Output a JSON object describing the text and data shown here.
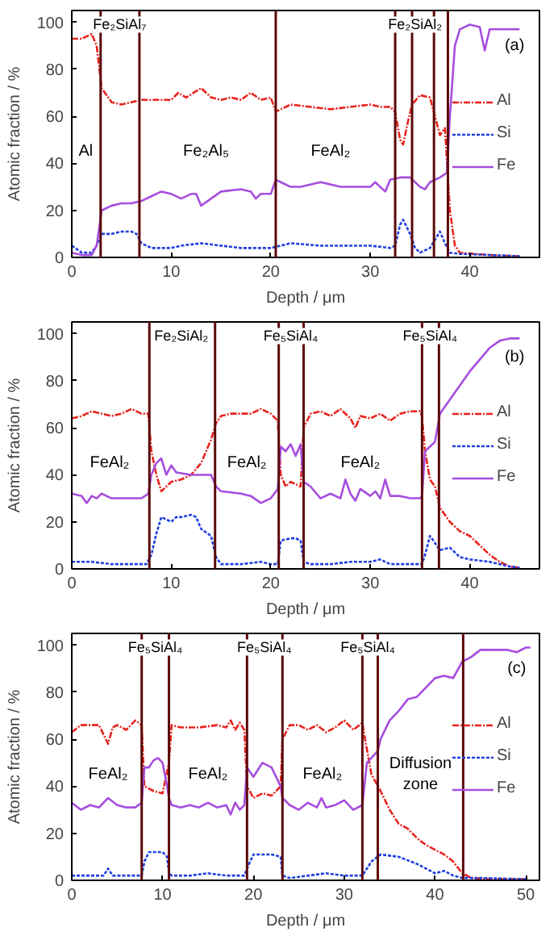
{
  "chart_data": [
    {
      "type": "line",
      "xlabel": "Depth / μm",
      "ylabel": "Atomic fraction / %",
      "xlim": [
        0,
        47
      ],
      "ylim": [
        0,
        105
      ],
      "xticks": [
        0,
        10,
        20,
        30,
        40
      ],
      "yticks": [
        0,
        20,
        40,
        60,
        80,
        100
      ],
      "grid": false,
      "legend": "right",
      "marker": "none",
      "series": [
        {
          "name": "Al",
          "color": "#e8231e",
          "line_style": "dashdot",
          "x": [
            0,
            1,
            2,
            2.5,
            3,
            4,
            5,
            6,
            7,
            9,
            10,
            10.7,
            11.5,
            13,
            14,
            15,
            16,
            17,
            18,
            19,
            20,
            20.5,
            21,
            22,
            24,
            26,
            28,
            30,
            31,
            32,
            32.5,
            33,
            33.3,
            33.8,
            34.2,
            35,
            36,
            36.5,
            37,
            37.5,
            38,
            38.5,
            39,
            42,
            45
          ],
          "values": [
            93,
            93,
            95,
            90,
            72,
            66,
            65,
            66,
            67,
            67,
            67,
            70,
            68,
            72,
            68,
            67,
            68,
            67,
            70,
            67,
            68,
            62,
            63,
            65,
            64,
            63,
            64,
            65,
            64,
            64,
            62,
            50,
            48,
            58,
            65,
            69,
            68,
            60,
            52,
            55,
            20,
            5,
            2,
            1,
            0.5
          ]
        },
        {
          "name": "Si",
          "color": "#1f3fe0",
          "line_style": "dotted",
          "x": [
            0,
            1,
            2,
            2.5,
            3,
            4,
            5,
            6,
            6.5,
            7,
            8,
            10,
            11,
            13,
            15,
            17,
            19,
            20,
            21,
            22,
            25,
            28,
            30,
            32,
            32.5,
            33,
            33.3,
            34,
            34.5,
            35,
            36,
            37,
            37.5,
            38,
            39,
            42,
            45
          ],
          "values": [
            5,
            2,
            2,
            5,
            10,
            10,
            11,
            11,
            10,
            6,
            4,
            4,
            5,
            6,
            5,
            4,
            4,
            4,
            5,
            6,
            5,
            5,
            5,
            4,
            5,
            14,
            16,
            10,
            4,
            2,
            4,
            11,
            6,
            2,
            1.5,
            1,
            0.5
          ]
        },
        {
          "name": "Fe",
          "color": "#a64dde",
          "line_style": "solid",
          "x": [
            0,
            1,
            2,
            2.5,
            3,
            4,
            5,
            6,
            7,
            8,
            9,
            10,
            11,
            12,
            12.5,
            13,
            14,
            15,
            17,
            18,
            18.5,
            19,
            20,
            20.5,
            21,
            22,
            23,
            25,
            27,
            28,
            30,
            30.5,
            31,
            31.5,
            32,
            33,
            34,
            35,
            35.5,
            36,
            37,
            37.7,
            38,
            38.5,
            39,
            40,
            41,
            41.5,
            42,
            43,
            45
          ],
          "values": [
            2,
            1,
            1,
            5,
            20,
            22,
            23,
            23,
            24,
            26,
            28,
            27,
            25,
            27,
            27,
            22,
            25,
            28,
            29,
            28,
            25,
            27,
            27,
            33,
            32,
            30,
            30,
            32,
            30,
            30,
            30,
            32,
            30,
            28,
            33,
            34,
            34,
            30,
            29,
            32,
            34,
            36,
            60,
            90,
            97,
            99,
            98,
            88,
            97,
            97,
            97
          ]
        }
      ],
      "ref_lines": [
        {
          "axis": "x",
          "value": 2.9,
          "color": "#5c0a0a"
        },
        {
          "axis": "x",
          "value": 6.8,
          "color": "#5c0a0a"
        },
        {
          "axis": "x",
          "value": 20.5,
          "color": "#5c0a0a"
        },
        {
          "axis": "x",
          "value": 32.5,
          "color": "#5c0a0a"
        },
        {
          "axis": "x",
          "value": 34.2,
          "color": "#5c0a0a"
        },
        {
          "axis": "x",
          "value": 36.4,
          "color": "#5c0a0a"
        },
        {
          "axis": "x",
          "value": 37.8,
          "color": "#5c0a0a"
        }
      ],
      "annotations": [
        "Fe₂SiAl₇",
        "Al",
        "Fe₂Al₅",
        "FeAl₂",
        "Fe₂SiAl₂",
        "(a)"
      ]
    },
    {
      "type": "line",
      "xlabel": "Depth / μm",
      "ylabel": "Atomic fraction / %",
      "xlim": [
        0,
        47
      ],
      "ylim": [
        0,
        105
      ],
      "xticks": [
        0,
        10,
        20,
        30,
        40
      ],
      "yticks": [
        0,
        20,
        40,
        60,
        80,
        100
      ],
      "grid": false,
      "legend": "right",
      "marker": "none",
      "series": [
        {
          "name": "Al",
          "color": "#e8231e",
          "line_style": "dashdot",
          "x": [
            0,
            1,
            2,
            3,
            4,
            5,
            6,
            7,
            7.7,
            8,
            8.5,
            9,
            10,
            11,
            12,
            13,
            14,
            14.5,
            15,
            16,
            17,
            18,
            19,
            20,
            20.7,
            21,
            21.5,
            22,
            22.5,
            23,
            23.3,
            24,
            25,
            26,
            27,
            28,
            28.5,
            29,
            30,
            31,
            32,
            33,
            34,
            35,
            35.2,
            35.5,
            36,
            36.5,
            37,
            38,
            39,
            40,
            41,
            42,
            43,
            44,
            45
          ],
          "values": [
            64,
            65,
            67,
            66,
            65,
            66,
            68,
            66,
            66,
            50,
            40,
            33,
            37,
            38,
            40,
            45,
            55,
            62,
            65,
            66,
            66,
            66,
            68,
            66,
            63,
            40,
            35,
            37,
            36,
            35,
            60,
            66,
            67,
            65,
            68,
            64,
            60,
            65,
            64,
            66,
            63,
            66,
            67,
            67,
            65,
            50,
            38,
            35,
            26,
            20,
            16,
            14,
            10,
            6,
            3,
            1,
            0.5
          ]
        },
        {
          "name": "Si",
          "color": "#1f3fe0",
          "line_style": "dotted",
          "x": [
            0,
            2,
            4,
            6,
            7.5,
            8,
            8.5,
            9,
            10,
            10.5,
            11,
            12,
            12.5,
            13,
            14,
            14.5,
            15,
            17,
            19,
            20,
            20.7,
            21,
            22,
            22.5,
            23,
            23.3,
            24,
            26,
            28,
            30,
            31,
            32,
            34,
            35.2,
            35.5,
            36,
            36.5,
            37,
            38,
            39,
            40,
            42,
            43,
            44,
            45
          ],
          "values": [
            3,
            3,
            2,
            2,
            2,
            6,
            15,
            22,
            20,
            22,
            22,
            23,
            22,
            17,
            14,
            5,
            2,
            2,
            3,
            2,
            2,
            12,
            13,
            13,
            12,
            3,
            2,
            2,
            3,
            3,
            4,
            2,
            2,
            2,
            6,
            14,
            11,
            8,
            9,
            5,
            4,
            3,
            2,
            1,
            0.5
          ]
        },
        {
          "name": "Fe",
          "color": "#a64dde",
          "line_style": "solid",
          "x": [
            0,
            1,
            1.5,
            2,
            2.5,
            3,
            4,
            6,
            7,
            7.7,
            8,
            8.5,
            9,
            9.5,
            10,
            10.5,
            12,
            14,
            14.5,
            15,
            17,
            18,
            19,
            20,
            20.7,
            21,
            21.5,
            22,
            22.5,
            23,
            23.3,
            24,
            25,
            26,
            27,
            27.5,
            28,
            28.5,
            29,
            30,
            30.5,
            31,
            31.5,
            32,
            33,
            34,
            35,
            35.2,
            35.5,
            36,
            36.5,
            37,
            38,
            39,
            40,
            41,
            42,
            43,
            44,
            45
          ],
          "values": [
            32,
            31,
            28,
            31,
            30,
            32,
            30,
            30,
            30,
            32,
            40,
            45,
            47,
            40,
            44,
            41,
            40,
            40,
            35,
            33,
            32,
            31,
            28,
            30,
            34,
            52,
            50,
            53,
            48,
            53,
            37,
            35,
            30,
            32,
            30,
            38,
            32,
            29,
            34,
            31,
            33,
            30,
            38,
            31,
            31,
            30,
            30,
            31,
            50,
            52,
            54,
            66,
            72,
            78,
            84,
            89,
            94,
            97,
            98,
            98
          ]
        }
      ],
      "ref_lines": [
        {
          "axis": "x",
          "value": 7.8,
          "color": "#5c0a0a"
        },
        {
          "axis": "x",
          "value": 14.4,
          "color": "#5c0a0a"
        },
        {
          "axis": "x",
          "value": 20.8,
          "color": "#5c0a0a"
        },
        {
          "axis": "x",
          "value": 23.3,
          "color": "#5c0a0a"
        },
        {
          "axis": "x",
          "value": 35.2,
          "color": "#5c0a0a"
        },
        {
          "axis": "x",
          "value": 36.9,
          "color": "#5c0a0a"
        }
      ],
      "annotations": [
        "FeAl₂",
        "Fe₂SiAl₂",
        "FeAl₂",
        "Fe₅SiAl₄",
        "FeAl₂",
        "Fe₅SiAl₄",
        "(b)"
      ]
    },
    {
      "type": "line",
      "xlabel": "Depth / μm",
      "ylabel": "Atomic fraction / %",
      "xlim": [
        0,
        51.5
      ],
      "ylim": [
        0,
        105
      ],
      "xticks": [
        0,
        10,
        20,
        30,
        40,
        50
      ],
      "yticks": [
        0,
        20,
        40,
        60,
        80,
        100
      ],
      "grid": false,
      "legend": "right",
      "marker": "none",
      "series": [
        {
          "name": "Al",
          "color": "#e8231e",
          "line_style": "dashdot",
          "x": [
            0,
            1,
            2,
            3,
            4,
            4.5,
            5,
            6,
            7,
            7.7,
            8,
            9,
            10,
            10.7,
            11,
            12,
            14,
            16,
            17,
            17.5,
            18,
            18.5,
            19,
            19.3,
            20,
            21,
            22,
            23,
            23.2,
            24,
            25,
            26,
            27,
            28,
            29,
            30,
            31,
            32,
            32.3,
            33,
            34,
            35,
            36,
            37,
            38,
            39,
            40,
            41,
            42,
            43,
            44,
            46,
            50
          ],
          "values": [
            63,
            66,
            66,
            66,
            58,
            65,
            66,
            64,
            68,
            66,
            40,
            38,
            37,
            50,
            66,
            65,
            65,
            66,
            65,
            68,
            64,
            67,
            64,
            40,
            35,
            37,
            36,
            40,
            60,
            66,
            66,
            64,
            66,
            63,
            65,
            68,
            64,
            67,
            60,
            45,
            38,
            30,
            24,
            22,
            18,
            15,
            13,
            11,
            8,
            3,
            1,
            0.5,
            0.5
          ]
        },
        {
          "name": "Si",
          "color": "#1f3fe0",
          "line_style": "dotted",
          "x": [
            0,
            2,
            3.5,
            4,
            4.5,
            6,
            7.7,
            8,
            8.5,
            9,
            10,
            10.5,
            10.7,
            11,
            13,
            15,
            17,
            19,
            19.3,
            20,
            21,
            22,
            23,
            23.2,
            24,
            26,
            28,
            30,
            32,
            33,
            34,
            36,
            38,
            40,
            41,
            42,
            43,
            45,
            50
          ],
          "values": [
            2,
            2,
            2,
            5,
            2,
            2,
            2,
            8,
            12,
            12,
            12,
            10,
            3,
            2,
            2,
            3,
            2,
            2,
            5,
            11,
            11,
            11,
            10,
            2,
            1,
            2,
            3,
            2,
            2,
            8,
            11,
            10,
            7,
            3,
            4,
            2,
            1,
            1,
            0.5
          ]
        },
        {
          "name": "Fe",
          "color": "#a64dde",
          "line_style": "solid",
          "x": [
            0,
            1,
            2,
            3,
            4,
            5,
            6,
            7,
            7.7,
            8,
            8.5,
            9,
            9.5,
            10,
            10.5,
            10.7,
            11,
            12,
            13,
            14,
            15,
            16,
            17,
            17.5,
            18,
            18.5,
            19,
            19.3,
            20,
            21,
            22,
            23,
            23.2,
            24,
            25,
            26,
            27,
            27.5,
            28,
            29,
            30,
            31,
            32,
            32.5,
            33,
            33.7,
            34,
            35,
            36,
            37,
            38,
            39,
            40,
            41,
            42,
            43,
            44,
            45,
            46,
            48,
            49,
            50,
            50.5
          ],
          "values": [
            33,
            30,
            32,
            31,
            35,
            32,
            31,
            31,
            33,
            48,
            48,
            51,
            52,
            50,
            40,
            35,
            32,
            31,
            32,
            31,
            33,
            31,
            32,
            28,
            33,
            30,
            32,
            48,
            44,
            50,
            48,
            40,
            35,
            32,
            30,
            33,
            31,
            35,
            31,
            32,
            34,
            30,
            32,
            50,
            52,
            55,
            60,
            68,
            72,
            77,
            78,
            82,
            86,
            87,
            86,
            93,
            95,
            98,
            98,
            98,
            97,
            99,
            99
          ]
        }
      ],
      "ref_lines": [
        {
          "axis": "x",
          "value": 7.7,
          "color": "#5c0a0a"
        },
        {
          "axis": "x",
          "value": 10.7,
          "color": "#5c0a0a"
        },
        {
          "axis": "x",
          "value": 19.3,
          "color": "#5c0a0a"
        },
        {
          "axis": "x",
          "value": 23.2,
          "color": "#5c0a0a"
        },
        {
          "axis": "x",
          "value": 32.0,
          "color": "#5c0a0a"
        },
        {
          "axis": "x",
          "value": 33.7,
          "color": "#5c0a0a"
        },
        {
          "axis": "x",
          "value": 43.1,
          "color": "#5c0a0a"
        }
      ],
      "annotations": [
        "FeAl₂",
        "Fe₅SiAl₄",
        "FeAl₂",
        "Fe₅SiAl₄",
        "FeAl₂",
        "Fe₅SiAl₄",
        "Diffusion\nzone",
        "(c)"
      ]
    }
  ]
}
